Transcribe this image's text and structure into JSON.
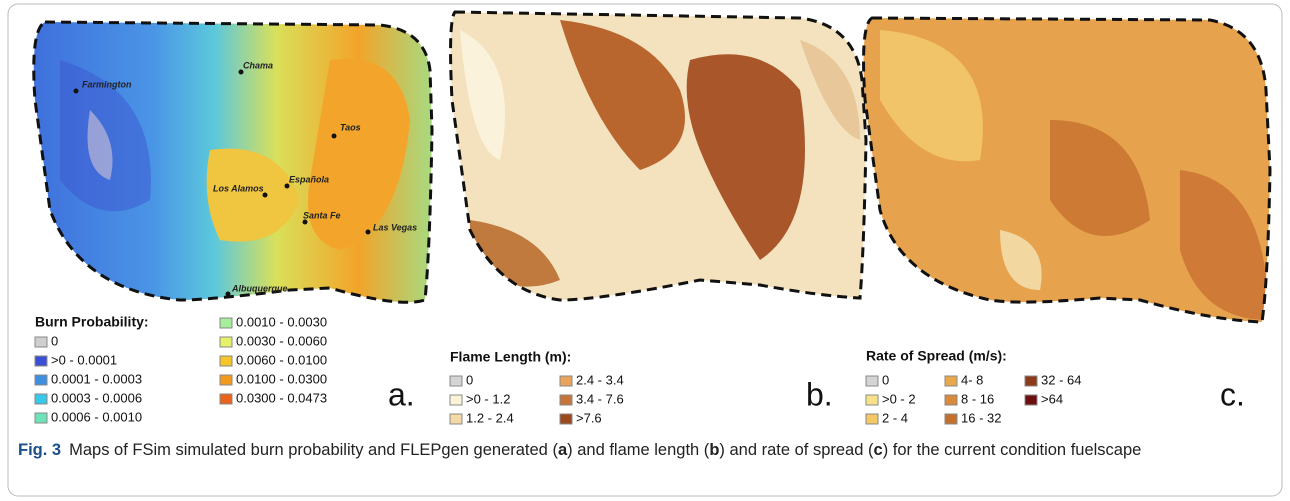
{
  "panels": [
    {
      "label": "a.",
      "legend": {
        "title": "Burn Probability:",
        "items": [
          {
            "label": "0",
            "color": "#cfcfcf"
          },
          {
            "label": ">0 - 0.0001",
            "color": "#3b4fd6"
          },
          {
            "label": "0.0001 - 0.0003",
            "color": "#3f8fe0"
          },
          {
            "label": "0.0003 - 0.0006",
            "color": "#38c8e8"
          },
          {
            "label": "0.0006 - 0.0010",
            "color": "#6fe3b8"
          },
          {
            "label": "0.0010 - 0.0030",
            "color": "#a6ee9a"
          },
          {
            "label": "0.0030 - 0.0060",
            "color": "#e6f16a"
          },
          {
            "label": "0.0060 - 0.0100",
            "color": "#f5c52a"
          },
          {
            "label": "0.0100 - 0.0300",
            "color": "#f09a1e"
          },
          {
            "label": "0.0300 - 0.0473",
            "color": "#e8621a"
          }
        ]
      },
      "places": [
        "Farmington",
        "Chama",
        "Taos",
        "Los Alamos",
        "Española",
        "Santa Fe",
        "Las Vegas",
        "Albuquerque"
      ]
    },
    {
      "label": "b.",
      "legend": {
        "title": "Flame Length (m):",
        "items": [
          {
            "label": "0",
            "color": "#d4d4d4"
          },
          {
            "label": ">0 - 1.2",
            "color": "#fbf4d9"
          },
          {
            "label": "1.2 - 2.4",
            "color": "#f3d9a6"
          },
          {
            "label": "2.4 - 3.4",
            "color": "#e9a45c"
          },
          {
            "label": "3.4 - 7.6",
            "color": "#c7743a"
          },
          {
            "label": ">7.6",
            "color": "#9a4a1e"
          }
        ]
      }
    },
    {
      "label": "c.",
      "legend": {
        "title": "Rate of Spread (m/s):",
        "items": [
          {
            "label": "0",
            "color": "#d4d4d4"
          },
          {
            "label": ">0 - 2",
            "color": "#f9e28a"
          },
          {
            "label": "2 - 4",
            "color": "#f4c964"
          },
          {
            "label": "4- 8",
            "color": "#eaa84a"
          },
          {
            "label": "8 - 16",
            "color": "#d98a3a"
          },
          {
            "label": "16 - 32",
            "color": "#c66f2c"
          },
          {
            "label": "32 - 64",
            "color": "#8b3a1a"
          },
          {
            "label": ">64",
            "color": "#6e0f0f"
          }
        ]
      }
    }
  ],
  "caption": {
    "label": "Fig. 3",
    "parts": [
      "Maps of FSim simulated burn probability and FLEPgen generated (",
      "a",
      ") and flame length (",
      "b",
      ") and rate of spread (",
      "c",
      ") for the current condition fuelscape"
    ]
  }
}
